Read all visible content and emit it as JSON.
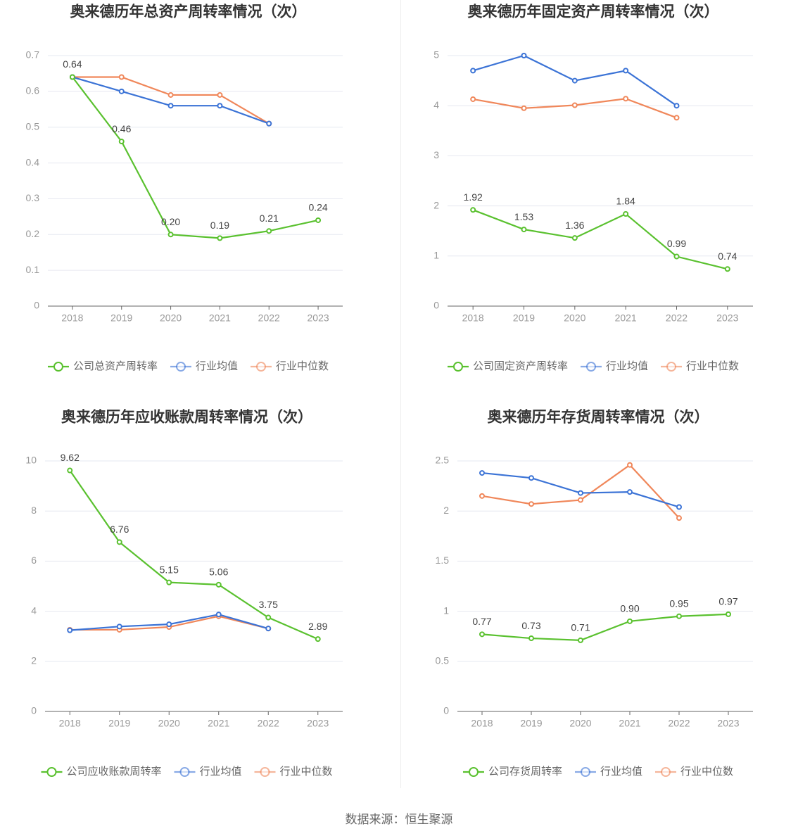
{
  "chart_data": [
    {
      "type": "line",
      "title": "奥来德历年总资产周转率情况（次）",
      "categories": [
        "2018",
        "2019",
        "2020",
        "2021",
        "2022",
        "2023"
      ],
      "series": [
        {
          "name": "公司总资产周转率",
          "color": "#5ac12f",
          "values": [
            0.64,
            0.46,
            0.2,
            0.19,
            0.21,
            0.24
          ],
          "value_labels": [
            "0.64",
            "0.46",
            "0.20",
            "0.19",
            "0.21",
            "0.24"
          ]
        },
        {
          "name": "行业均值",
          "color": "#3b73d6",
          "values": [
            0.64,
            0.6,
            0.56,
            0.56,
            0.51,
            null
          ]
        },
        {
          "name": "行业中位数",
          "color": "#f0875a",
          "values": [
            0.64,
            0.64,
            0.59,
            0.59,
            0.51,
            null
          ]
        }
      ],
      "ylim": [
        0,
        0.7
      ],
      "yticks": [
        0,
        0.1,
        0.2,
        0.3,
        0.4,
        0.5,
        0.6,
        0.7
      ],
      "grid": true
    },
    {
      "type": "line",
      "title": "奥来德历年固定资产周转率情况（次）",
      "categories": [
        "2018",
        "2019",
        "2020",
        "2021",
        "2022",
        "2023"
      ],
      "series": [
        {
          "name": "公司固定资产周转率",
          "color": "#5ac12f",
          "values": [
            1.92,
            1.53,
            1.36,
            1.84,
            0.99,
            0.74
          ]
        },
        {
          "name": "行业均值",
          "color": "#3b73d6",
          "values": [
            4.7,
            5.0,
            4.5,
            4.7,
            4.0,
            null
          ]
        },
        {
          "name": "行业中位数",
          "color": "#f0875a",
          "values": [
            4.13,
            3.95,
            4.01,
            4.14,
            3.76,
            null
          ]
        }
      ],
      "ylim": [
        0,
        5
      ],
      "yticks": [
        0,
        1,
        2,
        3,
        4,
        5
      ],
      "grid": true
    },
    {
      "type": "line",
      "title": "奥来德历年应收账款周转率情况（次）",
      "categories": [
        "2018",
        "2019",
        "2020",
        "2021",
        "2022",
        "2023"
      ],
      "series": [
        {
          "name": "公司应收账款周转率",
          "color": "#5ac12f",
          "values": [
            9.62,
            6.76,
            5.15,
            5.06,
            3.75,
            2.89
          ]
        },
        {
          "name": "行业均值",
          "color": "#3b73d6",
          "values": [
            3.24,
            3.39,
            3.48,
            3.87,
            3.31,
            null
          ]
        },
        {
          "name": "行业中位数",
          "color": "#f0875a",
          "values": [
            3.26,
            3.26,
            3.37,
            3.8,
            3.31,
            null
          ]
        }
      ],
      "ylim": [
        0,
        10
      ],
      "yticks": [
        0,
        2,
        4,
        6,
        8,
        10
      ],
      "grid": true
    },
    {
      "type": "line",
      "title": "奥来德历年存货周转率情况（次）",
      "categories": [
        "2018",
        "2019",
        "2020",
        "2021",
        "2022",
        "2023"
      ],
      "series": [
        {
          "name": "公司存货周转率",
          "color": "#5ac12f",
          "values": [
            0.77,
            0.73,
            0.71,
            0.9,
            0.95,
            0.97
          ],
          "value_labels": [
            "0.77",
            "0.73",
            "0.71",
            "0.90",
            "0.95",
            "0.97"
          ]
        },
        {
          "name": "行业均值",
          "color": "#3b73d6",
          "values": [
            2.38,
            2.33,
            2.18,
            2.19,
            2.04,
            null
          ]
        },
        {
          "name": "行业中位数",
          "color": "#f0875a",
          "values": [
            2.15,
            2.07,
            2.11,
            2.46,
            1.93,
            null
          ]
        }
      ],
      "ylim": [
        0,
        2.5
      ],
      "yticks": [
        0,
        0.5,
        1,
        1.5,
        2,
        2.5
      ],
      "grid": true
    }
  ],
  "source": "数据来源：恒生聚源"
}
